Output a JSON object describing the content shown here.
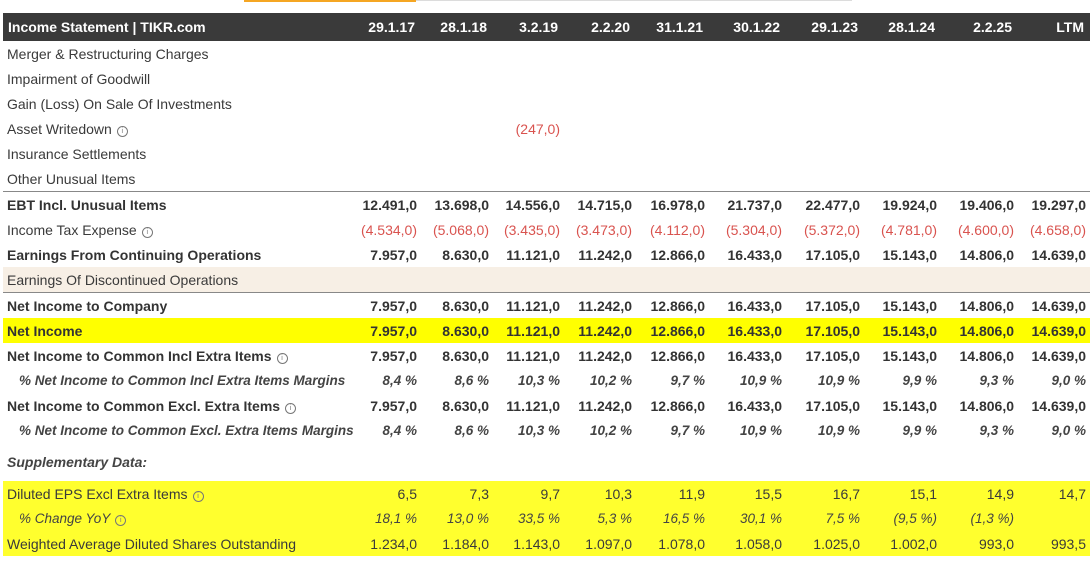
{
  "header": {
    "title": "Income Statement | TIKR.com",
    "periods": [
      "29.1.17",
      "28.1.18",
      "3.2.19",
      "2.2.20",
      "31.1.21",
      "30.1.22",
      "29.1.23",
      "28.1.24",
      "2.2.25",
      "LTM"
    ]
  },
  "rows": {
    "merger": {
      "label": "Merger & Restructuring Charges"
    },
    "impairment": {
      "label": "Impairment of Goodwill"
    },
    "gain_loss": {
      "label": "Gain (Loss) On Sale Of Investments"
    },
    "asset_writedown": {
      "label": "Asset Writedown",
      "values": [
        "",
        "",
        "(247,0)",
        "",
        "",
        "",
        "",
        "",
        "",
        ""
      ]
    },
    "insurance": {
      "label": "Insurance Settlements"
    },
    "other_unusual": {
      "label": "Other Unusual Items"
    },
    "ebt": {
      "label": "EBT Incl. Unusual Items",
      "values": [
        "12.491,0",
        "13.698,0",
        "14.556,0",
        "14.715,0",
        "16.978,0",
        "21.737,0",
        "22.477,0",
        "19.924,0",
        "19.406,0",
        "19.297,0"
      ]
    },
    "tax": {
      "label": "Income Tax Expense",
      "values": [
        "(4.534,0)",
        "(5.068,0)",
        "(3.435,0)",
        "(3.473,0)",
        "(4.112,0)",
        "(5.304,0)",
        "(5.372,0)",
        "(4.781,0)",
        "(4.600,0)",
        "(4.658,0)"
      ]
    },
    "continuing": {
      "label": "Earnings From Continuing Operations",
      "values": [
        "7.957,0",
        "8.630,0",
        "11.121,0",
        "11.242,0",
        "12.866,0",
        "16.433,0",
        "17.105,0",
        "15.143,0",
        "14.806,0",
        "14.639,0"
      ]
    },
    "discontinued": {
      "label": "Earnings Of Discontinued Operations"
    },
    "ni_company": {
      "label": "Net Income to Company",
      "values": [
        "7.957,0",
        "8.630,0",
        "11.121,0",
        "11.242,0",
        "12.866,0",
        "16.433,0",
        "17.105,0",
        "15.143,0",
        "14.806,0",
        "14.639,0"
      ]
    },
    "net_income": {
      "label": "Net Income",
      "values": [
        "7.957,0",
        "8.630,0",
        "11.121,0",
        "11.242,0",
        "12.866,0",
        "16.433,0",
        "17.105,0",
        "15.143,0",
        "14.806,0",
        "14.639,0"
      ]
    },
    "ni_common_incl": {
      "label": "Net Income to Common Incl Extra Items",
      "values": [
        "7.957,0",
        "8.630,0",
        "11.121,0",
        "11.242,0",
        "12.866,0",
        "16.433,0",
        "17.105,0",
        "15.143,0",
        "14.806,0",
        "14.639,0"
      ]
    },
    "ni_common_incl_margin": {
      "label": "% Net Income to Common Incl Extra Items Margins",
      "values": [
        "8,4 %",
        "8,6 %",
        "10,3 %",
        "10,2 %",
        "9,7 %",
        "10,9 %",
        "10,9 %",
        "9,9 %",
        "9,3 %",
        "9,0 %"
      ]
    },
    "ni_common_excl": {
      "label": "Net Income to Common Excl. Extra Items",
      "values": [
        "7.957,0",
        "8.630,0",
        "11.121,0",
        "11.242,0",
        "12.866,0",
        "16.433,0",
        "17.105,0",
        "15.143,0",
        "14.806,0",
        "14.639,0"
      ]
    },
    "ni_common_excl_margin": {
      "label": "% Net Income to Common Excl. Extra Items Margins",
      "values": [
        "8,4 %",
        "8,6 %",
        "10,3 %",
        "10,2 %",
        "9,7 %",
        "10,9 %",
        "10,9 %",
        "9,9 %",
        "9,3 %",
        "9,0 %"
      ]
    },
    "supplementary": {
      "label": "Supplementary Data:"
    },
    "eps": {
      "label": "Diluted EPS Excl Extra Items",
      "values": [
        "6,5",
        "7,3",
        "9,7",
        "10,3",
        "11,9",
        "15,5",
        "16,7",
        "15,1",
        "14,9",
        "14,7"
      ]
    },
    "eps_change": {
      "label": "% Change YoY",
      "values": [
        "18,1 %",
        "13,0 %",
        "33,5 %",
        "5,3 %",
        "16,5 %",
        "30,1 %",
        "7,5 %",
        "(9,5 %)",
        "(1,3 %)",
        ""
      ]
    },
    "shares": {
      "label": "Weighted Average Diluted Shares Outstanding",
      "values": [
        "1.234,0",
        "1.184,0",
        "1.143,0",
        "1.097,0",
        "1.078,0",
        "1.058,0",
        "1.025,0",
        "1.002,0",
        "993,0",
        "993,5"
      ]
    }
  },
  "colors": {
    "header_bg": "#3a3a3a",
    "highlight": "#ffff00",
    "negative": "#d9534f",
    "shade": "#f7efe5",
    "accent": "#f5a623"
  },
  "icons": {
    "info": "info-circle-icon"
  }
}
